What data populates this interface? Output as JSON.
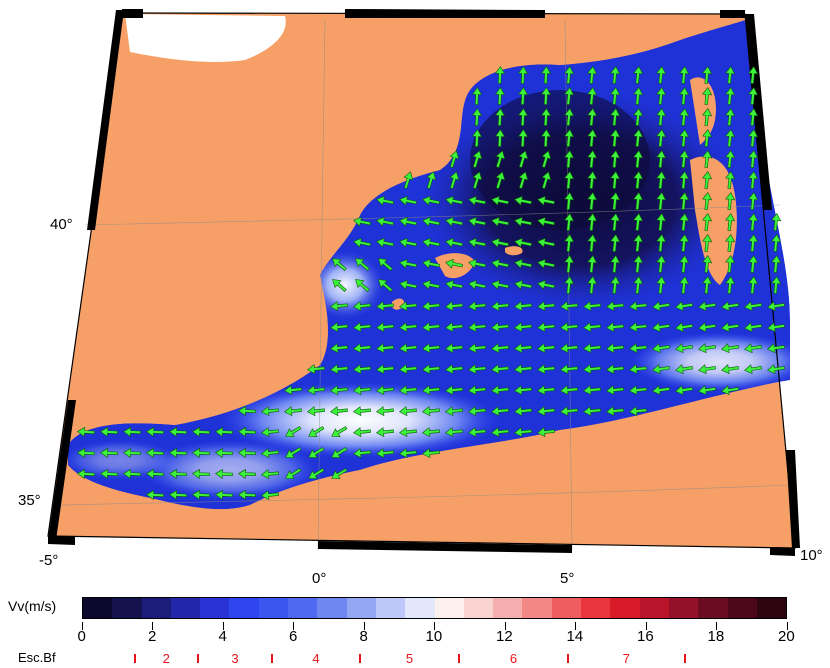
{
  "map": {
    "lon_labels": [
      {
        "text": "-5°",
        "lon": -5
      },
      {
        "text": "0°",
        "lon": 0
      },
      {
        "text": "5°",
        "lon": 5
      },
      {
        "text": "10°",
        "lon": 10
      }
    ],
    "lat_labels": [
      {
        "text": "40°",
        "lat": 40
      },
      {
        "text": "35°",
        "lat": 35
      }
    ],
    "colors": {
      "land": "#f6a067",
      "sea_dark": "#0d0a3a",
      "sea_mid": "#1f32d8",
      "sea_light": "#f4f6ff",
      "arrow": "#3cf23a",
      "arrow_outline": "#0a5a0a",
      "frame": "#000000"
    }
  },
  "colorbar": {
    "title": "Vv(m/s)",
    "min": 0,
    "max": 20,
    "tick_labels": [
      "0",
      "2",
      "4",
      "6",
      "8",
      "10",
      "12",
      "14",
      "16",
      "18",
      "20"
    ],
    "colors": [
      "#0b0a2e",
      "#141350",
      "#1c1c7a",
      "#2226a8",
      "#2a34d6",
      "#2f45ef",
      "#3b55f0",
      "#4f6af0",
      "#6f88f1",
      "#93a7f4",
      "#bdc8f8",
      "#e3e7fb",
      "#fbf0ee",
      "#f8d3d0",
      "#f5aeae",
      "#f28786",
      "#ef5d60",
      "#e9353d",
      "#d81a29",
      "#b8142a",
      "#95102a",
      "#6c0c22",
      "#4a0819",
      "#2d0510"
    ]
  },
  "beaufort": {
    "title": "Esc.Bf",
    "labels": [
      "2",
      "3",
      "4",
      "5",
      "6",
      "7"
    ],
    "boundaries_ms": [
      1.5,
      3.3,
      5.4,
      7.9,
      10.7,
      13.8,
      17.1
    ]
  }
}
